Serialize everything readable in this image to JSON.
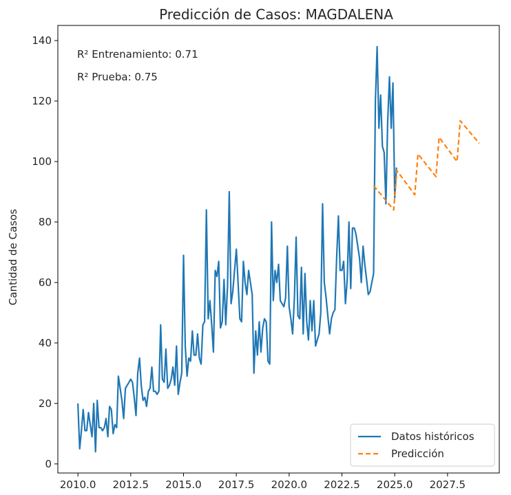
{
  "chart_data": {
    "type": "line",
    "title": "Predicción de Casos: MAGDALENA",
    "xlabel": "",
    "ylabel": "Cantidad de Casos",
    "xlim": [
      2009.05,
      2029.95
    ],
    "ylim": [
      -3,
      145
    ],
    "xticks": [
      2010.0,
      2012.5,
      2015.0,
      2017.5,
      2020.0,
      2022.5,
      2025.0,
      2027.5
    ],
    "xtick_labels": [
      "2010.0",
      "2012.5",
      "2015.0",
      "2017.5",
      "2020.0",
      "2022.5",
      "2025.0",
      "2027.5"
    ],
    "yticks": [
      0,
      20,
      40,
      60,
      80,
      100,
      120,
      140
    ],
    "ytick_labels": [
      "0",
      "20",
      "40",
      "60",
      "80",
      "100",
      "120",
      "140"
    ],
    "grid": false,
    "legend_position": "lower-right",
    "annotations": [
      "R² Entrenamiento: 0.71",
      "R² Prueba: 0.75"
    ],
    "series": [
      {
        "name": "Datos históricos",
        "color": "#1f77b4",
        "style": "solid",
        "x_start": 2010.0,
        "x_step": 0.08333,
        "values": [
          20,
          5,
          11,
          18,
          11,
          11,
          17,
          13,
          9,
          20,
          4,
          21,
          12,
          12,
          11,
          12,
          15,
          9,
          19,
          18,
          10,
          13,
          12,
          29,
          25,
          21,
          15,
          25,
          26,
          27,
          28,
          27,
          22,
          16,
          30,
          35,
          26,
          21,
          22,
          19,
          24,
          25,
          32,
          24,
          24,
          23,
          24,
          46,
          28,
          27,
          38,
          25,
          26,
          28,
          32,
          26,
          39,
          23,
          27,
          30,
          69,
          39,
          29,
          35,
          34,
          44,
          36,
          36,
          43,
          35,
          33,
          46,
          47,
          84,
          48,
          54,
          46,
          37,
          64,
          62,
          67,
          45,
          47,
          61,
          46,
          59,
          90,
          53,
          57,
          64,
          71,
          60,
          48,
          47,
          67,
          60,
          56,
          64,
          60,
          56,
          30,
          44,
          36,
          47,
          37,
          45,
          48,
          47,
          34,
          33,
          80,
          54,
          64,
          60,
          66,
          54,
          53,
          52,
          55,
          72,
          52,
          48,
          43,
          55,
          75,
          49,
          48,
          65,
          43,
          63,
          47,
          41,
          54,
          44,
          54,
          39,
          41,
          43,
          50,
          86,
          60,
          55,
          49,
          43,
          48,
          50,
          51,
          68,
          82,
          64,
          64,
          67,
          53,
          61,
          80,
          58,
          78,
          78,
          76,
          72,
          68,
          60,
          72,
          66,
          61,
          56,
          57,
          60,
          63,
          120,
          138,
          111,
          122,
          105,
          103,
          86,
          113,
          128,
          111,
          126,
          88,
          98
        ]
      },
      {
        "name": "Predicción",
        "color": "#ff7f0e",
        "style": "dashed",
        "points": [
          [
            2024.0,
            92
          ],
          [
            2024.95,
            84
          ],
          [
            2025.1,
            97
          ],
          [
            2025.95,
            89
          ],
          [
            2026.1,
            102.5
          ],
          [
            2026.95,
            95
          ],
          [
            2027.1,
            108
          ],
          [
            2027.95,
            100
          ],
          [
            2028.1,
            113.5
          ],
          [
            2029.0,
            106
          ]
        ]
      }
    ]
  }
}
